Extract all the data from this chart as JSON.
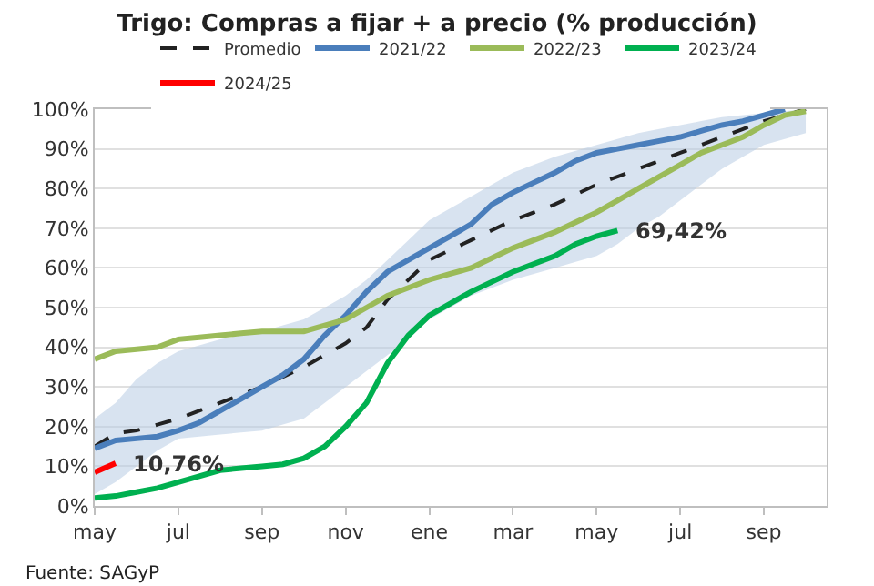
{
  "chart_data": {
    "type": "line",
    "title": "Trigo: Compras a fijar + a precio (% producción)",
    "categories": [
      "may",
      null,
      null,
      null,
      "jul",
      null,
      null,
      null,
      "sep",
      null,
      null,
      null,
      "nov",
      null,
      null,
      null,
      "ene",
      null,
      null,
      null,
      "mar",
      null,
      null,
      null,
      "may",
      null,
      null,
      null,
      "jul",
      null,
      null,
      null,
      "sep",
      null,
      null,
      null
    ],
    "ylim": [
      0,
      100
    ],
    "yticks": [
      {
        "value": 0,
        "label": "0%"
      },
      {
        "value": 10,
        "label": "10%"
      },
      {
        "value": 20,
        "label": "20%"
      },
      {
        "value": 30,
        "label": "30%"
      },
      {
        "value": 40,
        "label": "40%"
      },
      {
        "value": 50,
        "label": "50%"
      },
      {
        "value": 60,
        "label": "60%"
      },
      {
        "value": 70,
        "label": "70%"
      },
      {
        "value": 80,
        "label": "80%"
      },
      {
        "value": 90,
        "label": "90%"
      },
      {
        "value": 100,
        "label": "100%"
      }
    ],
    "grid": "y",
    "legend": "top",
    "marker": "none",
    "series": [
      {
        "name": "Promedio",
        "color": "#222222",
        "line_style": "dashed",
        "values": [
          15,
          18.3,
          19,
          20.5,
          22,
          24,
          26,
          28,
          30,
          32.5,
          35,
          38,
          41,
          45,
          52,
          57,
          62,
          64.5,
          67,
          69.5,
          72,
          74,
          76,
          78.5,
          81,
          83,
          85,
          87,
          89,
          91,
          93,
          95,
          97,
          98.5,
          100,
          null
        ],
        "lower": [
          3,
          6,
          10,
          14,
          17,
          17.5,
          18,
          18.5,
          19,
          20.5,
          22,
          26,
          30,
          34,
          38,
          42,
          47,
          50,
          53,
          55,
          57,
          58.5,
          60,
          61.5,
          63,
          66,
          70,
          73,
          77,
          81,
          85,
          88,
          91,
          92.5,
          94,
          null
        ],
        "upper": [
          22,
          26,
          32,
          36,
          39,
          40.5,
          42,
          43,
          44,
          45.5,
          47,
          50,
          53,
          57,
          62,
          67,
          72,
          75,
          78,
          81,
          84,
          86,
          88,
          89.5,
          91,
          92.5,
          94,
          95,
          96,
          97,
          98,
          98.5,
          99,
          99.5,
          100,
          null
        ]
      },
      {
        "name": "2021/22",
        "color": "#4a7ebb",
        "values": [
          14.5,
          16.5,
          17,
          17.5,
          19,
          21,
          24,
          27,
          30,
          33,
          37,
          43,
          48,
          54,
          59,
          62,
          65,
          68,
          71,
          76,
          79,
          81.5,
          84,
          87,
          89,
          90,
          91,
          92,
          93,
          94.5,
          96,
          97,
          98.5,
          100,
          null,
          null
        ]
      },
      {
        "name": "2022/23",
        "color": "#9bbb59",
        "values": [
          37,
          39,
          39.5,
          40,
          42,
          42.5,
          43,
          43.5,
          44,
          44,
          44,
          45.5,
          47,
          50,
          53,
          55,
          57,
          58.5,
          60,
          62.5,
          65,
          67,
          69,
          71.5,
          74,
          77,
          80,
          83,
          86,
          89,
          91,
          93,
          96,
          98.5,
          99.5,
          null
        ]
      },
      {
        "name": "2023/24",
        "color": "#00b050",
        "values": [
          2,
          2.5,
          3.5,
          4.5,
          6,
          7.5,
          9,
          9.5,
          10,
          10.5,
          12,
          15,
          20,
          26,
          36,
          43,
          48,
          51,
          54,
          56.5,
          59,
          61,
          63,
          66,
          68,
          69.42,
          null,
          null,
          null,
          null,
          null,
          null,
          null,
          null,
          null,
          null
        ],
        "value_labels": [
          null,
          null,
          null,
          null,
          null,
          null,
          null,
          null,
          null,
          null,
          null,
          null,
          null,
          null,
          null,
          null,
          null,
          null,
          null,
          null,
          null,
          null,
          null,
          null,
          null,
          "69,42%",
          null,
          null,
          null,
          null,
          null,
          null,
          null,
          null,
          null,
          null
        ]
      },
      {
        "name": "2024/25",
        "color": "#ff0000",
        "values": [
          8.5,
          10.76,
          null,
          null,
          null,
          null,
          null,
          null,
          null,
          null,
          null,
          null,
          null,
          null,
          null,
          null,
          null,
          null,
          null,
          null,
          null,
          null,
          null,
          null,
          null,
          null,
          null,
          null,
          null,
          null,
          null,
          null,
          null,
          null,
          null,
          null
        ],
        "value_labels": [
          null,
          "10,76%",
          null,
          null,
          null,
          null,
          null,
          null,
          null,
          null,
          null,
          null,
          null,
          null,
          null,
          null,
          null,
          null,
          null,
          null,
          null,
          null,
          null,
          null,
          null,
          null,
          null,
          null,
          null,
          null,
          null,
          null,
          null,
          null,
          null,
          null
        ]
      }
    ],
    "annotations": [
      "Fuente: SAGyP"
    ]
  }
}
